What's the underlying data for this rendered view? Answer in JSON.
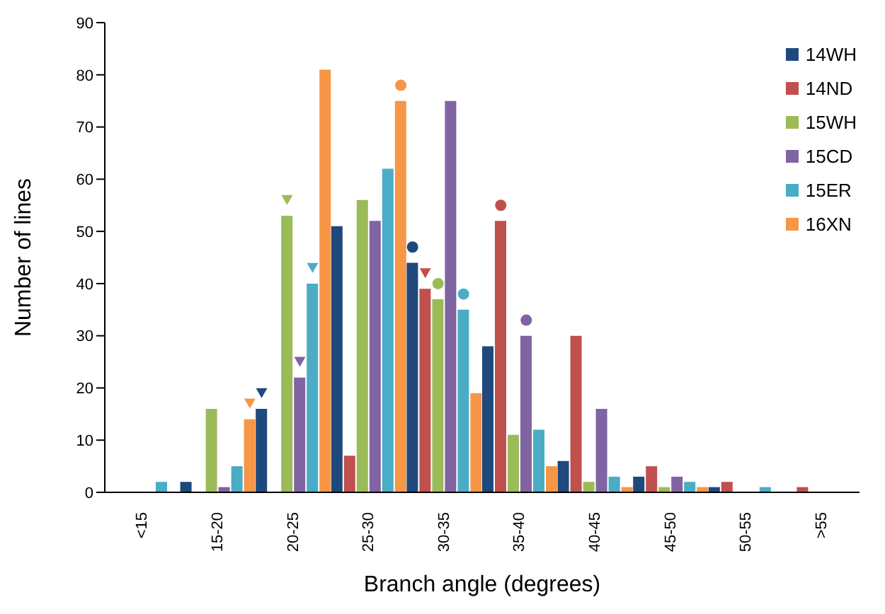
{
  "chart_data": {
    "type": "bar",
    "xlabel": "Branch angle (degrees)",
    "ylabel": "Number of lines",
    "categories": [
      "<15",
      "15-20",
      "20-25",
      "25-30",
      "30-35",
      "35-40",
      "40-45",
      "45-50",
      "50-55",
      ">55"
    ],
    "ylim": [
      0,
      90
    ],
    "yticks": [
      0,
      10,
      20,
      30,
      40,
      50,
      60,
      70,
      80,
      90
    ],
    "legend": "top right",
    "series": [
      {
        "name": "14WH",
        "color": "#1f497d",
        "values": [
          0,
          2,
          16,
          51,
          44,
          28,
          6,
          3,
          1,
          0
        ]
      },
      {
        "name": "14ND",
        "color": "#c0504d",
        "values": [
          0,
          0,
          0,
          7,
          39,
          52,
          30,
          5,
          2,
          1
        ]
      },
      {
        "name": "15WH",
        "color": "#9bbb59",
        "values": [
          0,
          16,
          53,
          56,
          37,
          11,
          2,
          1,
          0,
          0
        ]
      },
      {
        "name": "15CD",
        "color": "#8064a2",
        "values": [
          0,
          1,
          22,
          52,
          75,
          30,
          16,
          3,
          0,
          0
        ]
      },
      {
        "name": "15ER",
        "color": "#4bacc6",
        "values": [
          2,
          5,
          40,
          62,
          35,
          12,
          3,
          2,
          1,
          0
        ]
      },
      {
        "name": "16XN",
        "color": "#f79646",
        "values": [
          0,
          14,
          81,
          75,
          19,
          5,
          1,
          1,
          0,
          0
        ]
      },
      {
        "type": "scatter",
        "marker": "triangle",
        "color": "#1f497d",
        "x": [
          "20-25"
        ],
        "values": [
          19
        ]
      },
      {
        "type": "scatter",
        "marker": "triangle",
        "color": "#c0504d",
        "x": [
          "30-35"
        ],
        "values": [
          42
        ]
      },
      {
        "type": "scatter",
        "marker": "triangle",
        "color": "#9bbb59",
        "x": [
          "20-25"
        ],
        "values": [
          56
        ]
      },
      {
        "type": "scatter",
        "marker": "triangle",
        "color": "#8064a2",
        "x": [
          "20-25"
        ],
        "values": [
          25
        ]
      },
      {
        "type": "scatter",
        "marker": "triangle",
        "color": "#4bacc6",
        "x": [
          "20-25"
        ],
        "values": [
          43
        ]
      },
      {
        "type": "scatter",
        "marker": "triangle",
        "color": "#f79646",
        "x": [
          "15-20"
        ],
        "values": [
          17
        ]
      },
      {
        "type": "scatter",
        "marker": "circle",
        "color": "#1f497d",
        "x": [
          "30-35"
        ],
        "values": [
          47
        ]
      },
      {
        "type": "scatter",
        "marker": "circle",
        "color": "#c0504d",
        "x": [
          "35-40"
        ],
        "values": [
          55
        ]
      },
      {
        "type": "scatter",
        "marker": "circle",
        "color": "#9bbb59",
        "x": [
          "30-35"
        ],
        "values": [
          40
        ]
      },
      {
        "type": "scatter",
        "marker": "circle",
        "color": "#8064a2",
        "x": [
          "35-40"
        ],
        "values": [
          33
        ]
      },
      {
        "type": "scatter",
        "marker": "circle",
        "color": "#4bacc6",
        "x": [
          "30-35"
        ],
        "values": [
          38
        ]
      },
      {
        "type": "scatter",
        "marker": "circle",
        "color": "#f79646",
        "x": [
          "25-30"
        ],
        "values": [
          78
        ]
      }
    ]
  }
}
